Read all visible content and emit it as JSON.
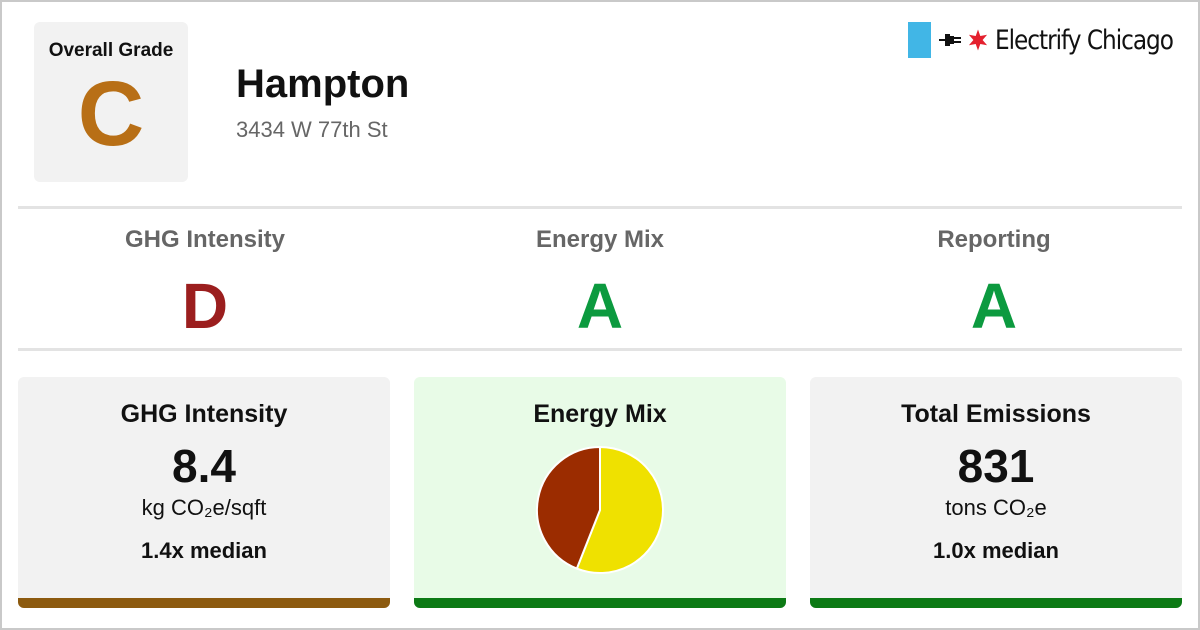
{
  "colors": {
    "grade_c": "#b86f16",
    "grade_d": "#9b1e1e",
    "grade_a": "#0c9a3f",
    "bar_brown": "#8c5a0f",
    "bar_green": "#0c7a15",
    "pie_electric": "#efe100",
    "pie_gas": "#9b2c00",
    "chicago_blue": "#41b6e6",
    "chicago_red": "#e4202e"
  },
  "brand": {
    "name": "Electrify Chicago",
    "icons": [
      "flag-stripe-icon",
      "plug-icon",
      "chicago-star-icon"
    ]
  },
  "header": {
    "overall_label": "Overall Grade",
    "overall_grade": "C",
    "building_name": "Hampton",
    "address": "3434 W 77th St"
  },
  "grades": [
    {
      "label": "GHG Intensity",
      "grade": "D"
    },
    {
      "label": "Energy Mix",
      "grade": "A"
    },
    {
      "label": "Reporting",
      "grade": "A"
    }
  ],
  "cards": {
    "ghg": {
      "title": "GHG Intensity",
      "value": "8.4",
      "unit": "kg CO₂e/sqft",
      "median": "1.4x median"
    },
    "mix": {
      "title": "Energy Mix"
    },
    "emissions": {
      "title": "Total Emissions",
      "value": "831",
      "unit": "tons CO₂e",
      "median": "1.0x median"
    }
  },
  "chart_data": {
    "type": "pie",
    "title": "Energy Mix",
    "slices": [
      {
        "value": 56,
        "color": "#efe100"
      },
      {
        "value": 44,
        "color": "#9b2c00"
      }
    ]
  }
}
